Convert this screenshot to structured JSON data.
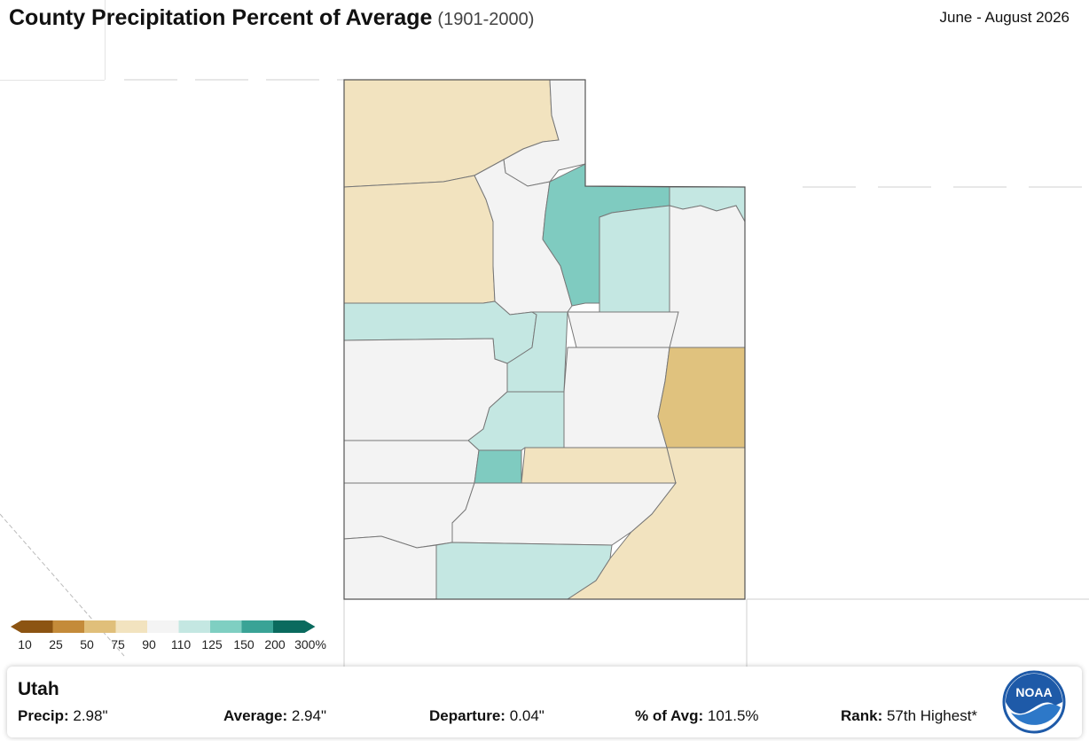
{
  "header": {
    "title": "County Precipitation Percent of Average",
    "subtitle": "(1901-2000)",
    "period": "June - August 2026"
  },
  "legend": {
    "labels": [
      "10",
      "25",
      "50",
      "75",
      "90",
      "110",
      "125",
      "150",
      "200",
      "300%"
    ],
    "colors": [
      "#8c5412",
      "#c48b3a",
      "#e0bf7a",
      "#f2e3bf",
      "#f4f4f4",
      "#c4e7e2",
      "#7fcfc2",
      "#3aa396",
      "#0a6a5e"
    ]
  },
  "colors": {
    "dry_light": "#f2e3bf",
    "dry_medium": "#e0c27e",
    "normal": "#f3f3f3",
    "wet_light": "#c4e7e2",
    "wet_medium": "#7fcbc0",
    "border": "#666666",
    "noaa_blue": "#1e5aa8"
  },
  "info": {
    "state": "Utah",
    "precip_label": "Precip:",
    "precip_value": "2.98\"",
    "average_label": "Average:",
    "average_value": "2.94\"",
    "departure_label": "Departure:",
    "departure_value": "0.04\"",
    "pct_label": "% of Avg:",
    "pct_value": "101.5%",
    "rank_label": "Rank:",
    "rank_value": "57th Highest*",
    "logo_text": "NOAA"
  }
}
